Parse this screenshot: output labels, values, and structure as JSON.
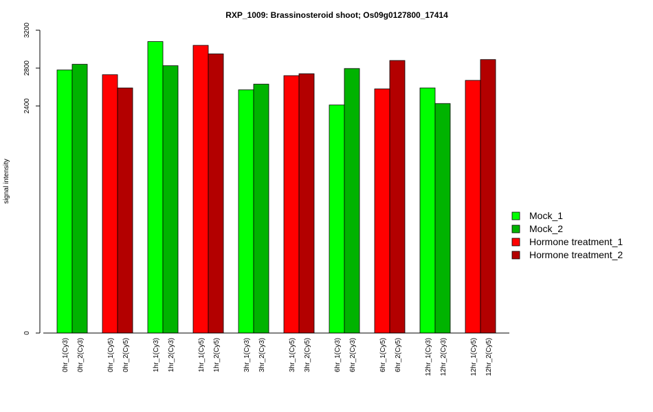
{
  "chart_data": {
    "type": "bar",
    "title": "RXP_1009: Brassinosteroid shoot; Os09g0127800_17414",
    "xlabel": "",
    "ylabel": "signal intensity",
    "ylim": [
      0,
      3200
    ],
    "yticks": [
      0,
      2400,
      2800,
      3200
    ],
    "categories": [
      "0hr_1(Cy3)",
      "0hr_2(Cy3)",
      "0hr_1(Cy5)",
      "0hr_2(Cy5)",
      "1hr_1(Cy3)",
      "1hr_2(Cy3)",
      "1hr_1(Cy5)",
      "1hr_2(Cy5)",
      "3hr_1(Cy3)",
      "3hr_2(Cy3)",
      "3hr_1(Cy5)",
      "3hr_2(Cy5)",
      "6hr_1(Cy3)",
      "6hr_2(Cy3)",
      "6hr_1(Cy5)",
      "6hr_2(Cy5)",
      "12hr_1(Cy3)",
      "12hr_2(Cy3)",
      "12hr_1(Cy5)",
      "12hr_2(Cy5)"
    ],
    "values": [
      2780,
      2840,
      2730,
      2590,
      3080,
      2825,
      3040,
      2950,
      2570,
      2630,
      2720,
      2740,
      2410,
      2795,
      2580,
      2880,
      2590,
      2425,
      2670,
      2890
    ],
    "bar_series": [
      "Mock_1",
      "Mock_2",
      "Hormone treatment_1",
      "Hormone treatment_2",
      "Mock_1",
      "Mock_2",
      "Hormone treatment_1",
      "Hormone treatment_2",
      "Mock_1",
      "Mock_2",
      "Hormone treatment_1",
      "Hormone treatment_2",
      "Mock_1",
      "Mock_2",
      "Hormone treatment_1",
      "Hormone treatment_2",
      "Mock_1",
      "Mock_2",
      "Hormone treatment_1",
      "Hormone treatment_2"
    ],
    "series": [
      {
        "name": "Mock_1",
        "color": "#00ff00"
      },
      {
        "name": "Mock_2",
        "color": "#00b300"
      },
      {
        "name": "Hormone treatment_1",
        "color": "#ff0000"
      },
      {
        "name": "Hormone treatment_2",
        "color": "#b30000"
      }
    ],
    "legend_position": "right",
    "grid": false
  }
}
